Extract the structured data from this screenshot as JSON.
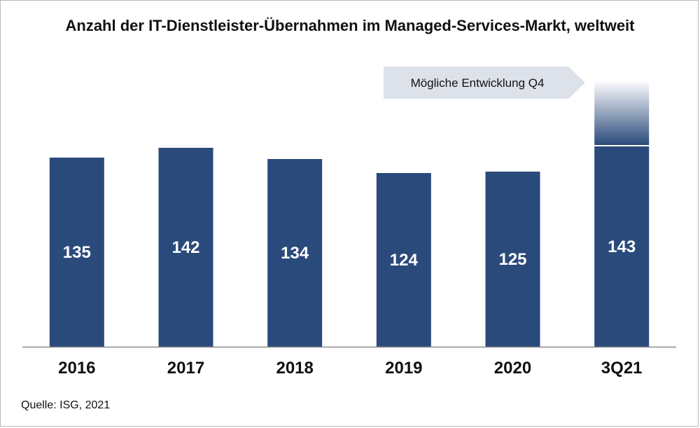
{
  "title": "Anzahl der IT-Dienstleister-Übernahmen im Managed-Services-Markt, weltweit",
  "source": "Quelle: ISG, 2021",
  "callout": "Mögliche Entwicklung Q4",
  "colors": {
    "bar": "#2a4a7b",
    "projection": "#2a4a7b",
    "callout_bg": "#dde2ea",
    "axis": "#8c8c8c"
  },
  "chart_data": {
    "type": "bar",
    "categories": [
      "2016",
      "2017",
      "2018",
      "2019",
      "2020",
      "3Q21"
    ],
    "values": [
      135,
      142,
      134,
      124,
      125,
      143
    ],
    "projection": {
      "category": "3Q21",
      "label": "Mögliche Entwicklung Q4",
      "style": "gradient fade above bar"
    },
    "ylim": [
      0,
      190
    ],
    "grid": false,
    "legend": "none",
    "title": "Anzahl der IT-Dienstleister-Übernahmen im Managed-Services-Markt, weltweit",
    "xlabel": "",
    "ylabel": ""
  }
}
